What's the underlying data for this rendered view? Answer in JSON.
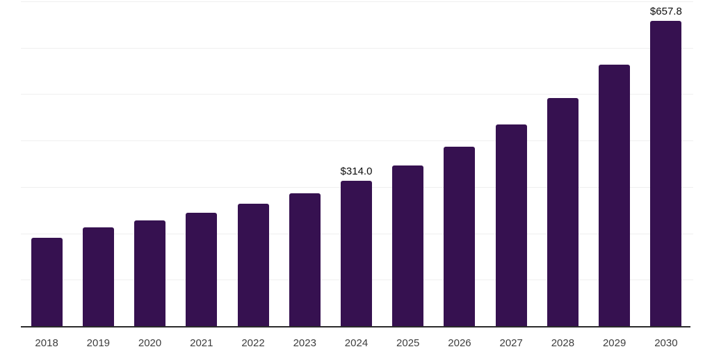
{
  "chart_data": {
    "type": "bar",
    "title": "",
    "xlabel": "",
    "ylabel": "",
    "categories": [
      "2018",
      "2019",
      "2020",
      "2021",
      "2022",
      "2023",
      "2024",
      "2025",
      "2026",
      "2027",
      "2028",
      "2029",
      "2030"
    ],
    "values": [
      191,
      213,
      228,
      244,
      264,
      286,
      314.0,
      347,
      386,
      434,
      492,
      564,
      657.8
    ],
    "data_labels": {
      "2024": "$314.0",
      "2030": "$657.8"
    },
    "ylim": [
      0,
      700
    ],
    "gridline_step": 100,
    "grid": "horizontal-only",
    "legend_position": "none",
    "y_axis_tick_labels_visible": false,
    "colors": {
      "bar": "#361150",
      "grid": "#efefef",
      "axis": "#2b2b2b",
      "tick_label": "#3d3d3d",
      "data_label": "#0d0d0d",
      "background": "#ffffff"
    }
  }
}
